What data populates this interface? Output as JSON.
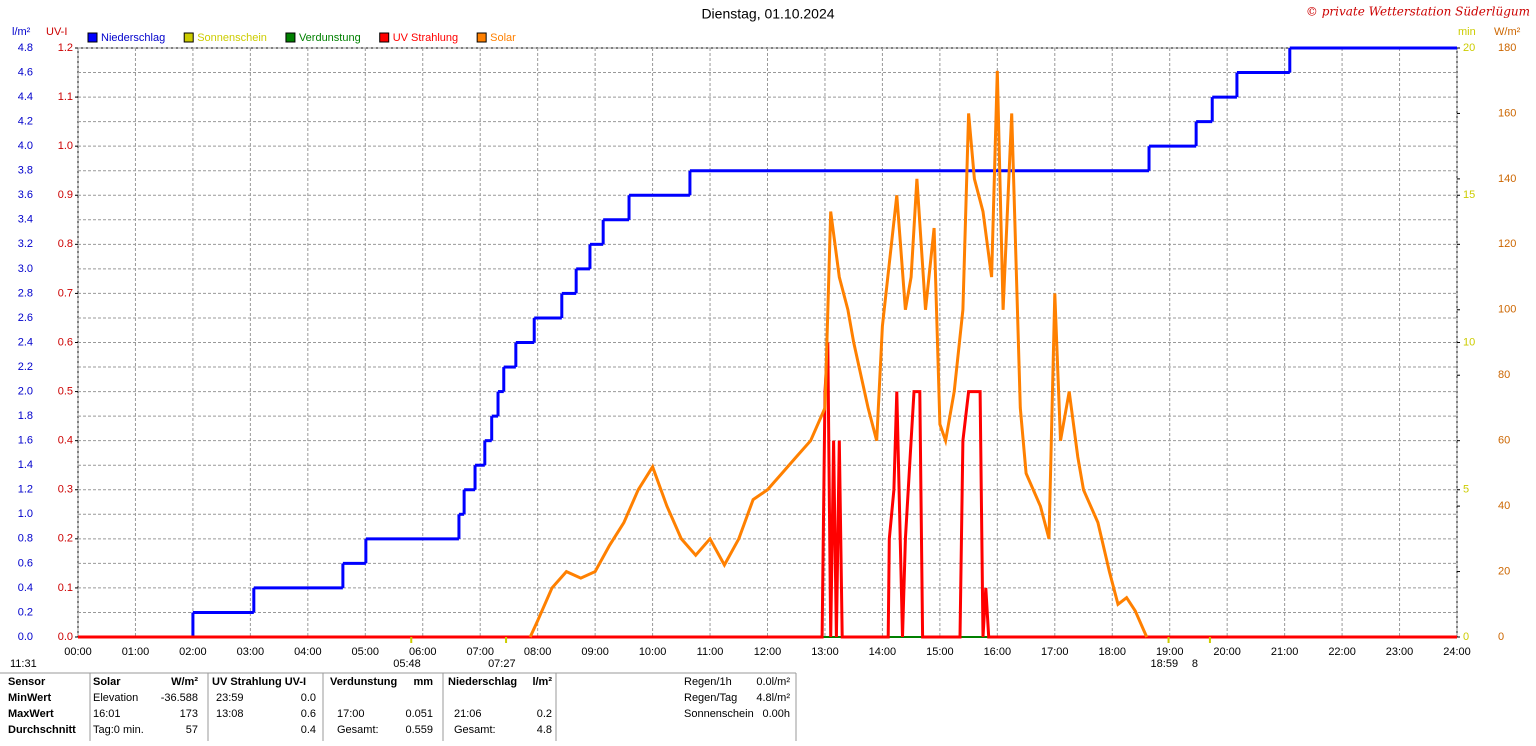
{
  "chart_data": {
    "type": "line",
    "title": "Dienstag, 01.10.2024",
    "copyright": "© private Wetterstation Süderlügum",
    "xlim": [
      0,
      24
    ],
    "xticks": [
      {
        "value": 0,
        "label": "00:00"
      },
      {
        "value": 1,
        "label": "01:00"
      },
      {
        "value": 2,
        "label": "02:00"
      },
      {
        "value": 3,
        "label": "03:00"
      },
      {
        "value": 4,
        "label": "04:00"
      },
      {
        "value": 5,
        "label": "05:00"
      },
      {
        "value": 6,
        "label": "06:00"
      },
      {
        "value": 7,
        "label": "07:00"
      },
      {
        "value": 8,
        "label": "08:00"
      },
      {
        "value": 9,
        "label": "09:00"
      },
      {
        "value": 10,
        "label": "10:00"
      },
      {
        "value": 11,
        "label": "11:00"
      },
      {
        "value": 12,
        "label": "12:00"
      },
      {
        "value": 13,
        "label": "13:00"
      },
      {
        "value": 14,
        "label": "14:00"
      },
      {
        "value": 15,
        "label": "15:00"
      },
      {
        "value": 16,
        "label": "16:00"
      },
      {
        "value": 17,
        "label": "17:00"
      },
      {
        "value": 18,
        "label": "18:00"
      },
      {
        "value": 19,
        "label": "19:00"
      },
      {
        "value": 20,
        "label": "20:00"
      },
      {
        "value": 21,
        "label": "21:00"
      },
      {
        "value": 22,
        "label": "22:00"
      },
      {
        "value": 23,
        "label": "23:00"
      },
      {
        "value": 24,
        "label": "24:00"
      }
    ],
    "grid": true,
    "axes": [
      {
        "label": "l/m²",
        "color": "#0000cc",
        "lim": [
          0,
          4.8
        ],
        "ticks": [
          {
            "value": 0,
            "label": "0.0"
          },
          {
            "value": 0.2,
            "label": "0.2"
          },
          {
            "value": 0.4,
            "label": "0.4"
          },
          {
            "value": 0.6,
            "label": "0.6"
          },
          {
            "value": 0.8,
            "label": "0.8"
          },
          {
            "value": 1,
            "label": "1.0"
          },
          {
            "value": 1.2,
            "label": "1.2"
          },
          {
            "value": 1.4,
            "label": "1.4"
          },
          {
            "value": 1.6,
            "label": "1.6"
          },
          {
            "value": 1.8,
            "label": "1.8"
          },
          {
            "value": 2,
            "label": "2.0"
          },
          {
            "value": 2.2,
            "label": "2.2"
          },
          {
            "value": 2.4,
            "label": "2.4"
          },
          {
            "value": 2.6,
            "label": "2.6"
          },
          {
            "value": 2.8,
            "label": "2.8"
          },
          {
            "value": 3,
            "label": "3.0"
          },
          {
            "value": 3.2,
            "label": "3.2"
          },
          {
            "value": 3.4,
            "label": "3.4"
          },
          {
            "value": 3.6,
            "label": "3.6"
          },
          {
            "value": 3.8,
            "label": "3.8"
          },
          {
            "value": 4,
            "label": "4.0"
          },
          {
            "value": 4.2,
            "label": "4.2"
          },
          {
            "value": 4.4,
            "label": "4.4"
          },
          {
            "value": 4.6,
            "label": "4.6"
          },
          {
            "value": 4.8,
            "label": "4.8"
          }
        ]
      },
      {
        "label": "UV-I",
        "color": "#cc0000",
        "lim": [
          0,
          1.2
        ],
        "ticks": [
          {
            "value": 0,
            "label": "0.0"
          },
          {
            "value": 0.1,
            "label": "0.1"
          },
          {
            "value": 0.2,
            "label": "0.2"
          },
          {
            "value": 0.3,
            "label": "0.3"
          },
          {
            "value": 0.4,
            "label": "0.4"
          },
          {
            "value": 0.5,
            "label": "0.5"
          },
          {
            "value": 0.6,
            "label": "0.6"
          },
          {
            "value": 0.7,
            "label": "0.7"
          },
          {
            "value": 0.8,
            "label": "0.8"
          },
          {
            "value": 0.9,
            "label": "0.9"
          },
          {
            "value": 1,
            "label": "1.0"
          },
          {
            "value": 1.1,
            "label": "1.1"
          },
          {
            "value": 1.2,
            "label": "1.2"
          }
        ]
      },
      {
        "label": "min",
        "color": "#cccc00",
        "lim": [
          0,
          20
        ],
        "ticks": [
          0,
          5,
          10,
          15,
          20
        ]
      },
      {
        "label": "W/m²",
        "color": "#cc6600",
        "lim": [
          0,
          180
        ],
        "ticks": [
          0,
          20,
          40,
          60,
          80,
          100,
          120,
          140,
          160,
          180
        ]
      }
    ],
    "series": [
      {
        "name": "Niederschlag",
        "color": "#0000ff",
        "axis": 0,
        "step": true,
        "x": [
          0,
          2.0,
          3.06,
          4.61,
          5.01,
          6.63,
          6.72,
          6.91,
          7.08,
          7.2,
          7.31,
          7.41,
          7.62,
          7.94,
          8.42,
          8.67,
          8.91,
          9.14,
          9.59,
          10.65,
          18.64,
          19.46,
          19.74,
          20.17,
          21.09,
          24
        ],
        "values": [
          0,
          0.2,
          0.4,
          0.6,
          0.8,
          1.0,
          1.2,
          1.4,
          1.6,
          1.8,
          2.0,
          2.2,
          2.4,
          2.6,
          2.8,
          3.0,
          3.2,
          3.4,
          3.6,
          3.8,
          4.0,
          4.2,
          4.4,
          4.6,
          4.8,
          4.8
        ]
      },
      {
        "name": "Sonnenschein",
        "color": "#cccc00",
        "axis": 2,
        "x": [],
        "values": []
      },
      {
        "name": "Verdunstung",
        "color": "#008000",
        "axis": 0,
        "x": [
          0,
          24
        ],
        "values": [
          0,
          0
        ]
      },
      {
        "name": "UV Strahlung",
        "color": "#ff0000",
        "axis": 1,
        "x": [
          0,
          12.95,
          13.0,
          13.05,
          13.1,
          13.15,
          13.2,
          13.25,
          13.3,
          14.1,
          14.12,
          14.2,
          14.25,
          14.35,
          14.4,
          14.5,
          14.55,
          14.65,
          14.7,
          15.35,
          15.4,
          15.5,
          15.6,
          15.7,
          15.75,
          15.8,
          15.85,
          24
        ],
        "values": [
          0,
          0,
          0.5,
          0.6,
          0,
          0.4,
          0,
          0.4,
          0,
          0,
          0.2,
          0.3,
          0.5,
          0,
          0.2,
          0.4,
          0.5,
          0.5,
          0,
          0,
          0.4,
          0.5,
          0.5,
          0.5,
          0,
          0.1,
          0,
          0
        ]
      },
      {
        "name": "Solar",
        "color": "#ff8000",
        "axis": 3,
        "x": [
          7.87,
          8.0,
          8.25,
          8.5,
          8.75,
          9.0,
          9.25,
          9.5,
          9.75,
          10.0,
          10.25,
          10.5,
          10.75,
          11.0,
          11.25,
          11.5,
          11.75,
          12.0,
          12.25,
          12.5,
          12.75,
          13.0,
          13.1,
          13.25,
          13.4,
          13.5,
          13.75,
          13.9,
          14.0,
          14.25,
          14.4,
          14.5,
          14.6,
          14.75,
          14.9,
          15.0,
          15.1,
          15.25,
          15.4,
          15.5,
          15.6,
          15.75,
          15.9,
          16.0,
          16.1,
          16.25,
          16.4,
          16.5,
          16.75,
          16.9,
          17.0,
          17.1,
          17.25,
          17.4,
          17.5,
          17.75,
          17.95,
          18.1,
          18.25,
          18.4,
          18.6
        ],
        "values": [
          0,
          5,
          15,
          20,
          18,
          20,
          28,
          35,
          45,
          52,
          40,
          30,
          25,
          30,
          22,
          30,
          42,
          45,
          50,
          55,
          60,
          70,
          130,
          110,
          100,
          90,
          70,
          60,
          95,
          135,
          100,
          110,
          140,
          100,
          125,
          65,
          60,
          75,
          100,
          160,
          140,
          130,
          110,
          173,
          100,
          160,
          70,
          50,
          40,
          30,
          105,
          60,
          75,
          55,
          45,
          35,
          20,
          10,
          12,
          8,
          0
        ]
      }
    ],
    "sun_markers": [
      {
        "label": "11:31",
        "value": 0
      },
      {
        "label": "05:48",
        "value": 5.8
      },
      {
        "label": "07:27",
        "value": 7.45
      },
      {
        "label": "18:59",
        "value": 18.98
      },
      {
        "label": "8",
        "value": 19.7
      }
    ]
  },
  "stats": {
    "header": [
      "Sensor",
      "Solar",
      "W/m²",
      "UV Strahlung UV-I",
      "Verdunstung",
      "mm",
      "Niederschlag",
      "l/m²"
    ],
    "rows": [
      [
        "MinWert",
        "Elevation",
        "-36.588",
        "23:59",
        "0.0",
        null,
        null,
        null,
        null
      ],
      [
        "MaxWert",
        "16:01",
        "173",
        "13:08",
        "0.6",
        "17:00",
        "0.051",
        "21:06",
        "0.2"
      ],
      [
        "Durchschnitt",
        "Tag:0 min.",
        "57",
        null,
        "0.4",
        "Gesamt:",
        "0.559",
        "Gesamt:",
        "4.8"
      ]
    ],
    "summary": [
      [
        "Regen/1h",
        "0.0l/m²"
      ],
      [
        "Regen/Tag",
        "4.8l/m²"
      ],
      [
        "Sonnenschein",
        "0.00h"
      ]
    ]
  }
}
